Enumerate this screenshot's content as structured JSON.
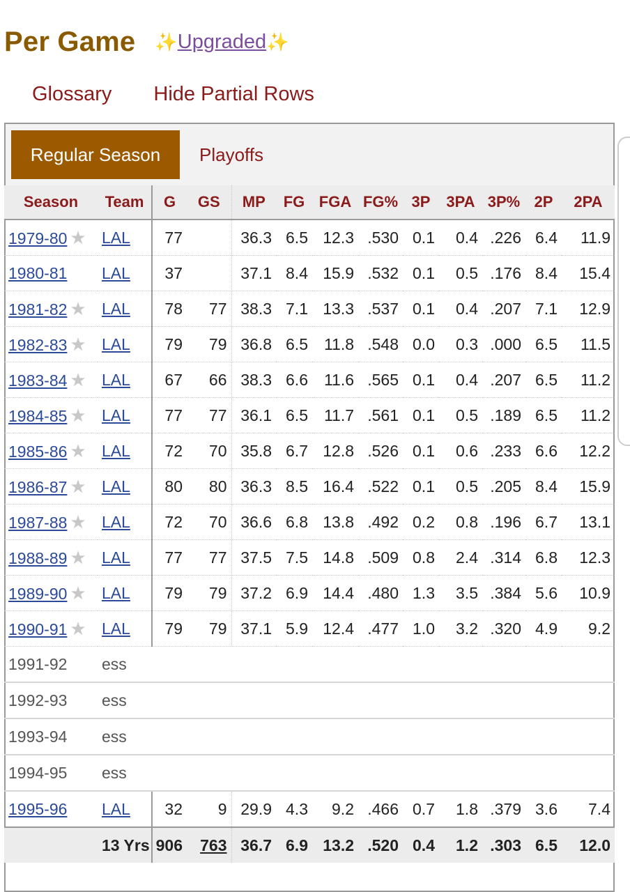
{
  "header": {
    "title": "Per Game",
    "sparkle_left": "✨",
    "upgraded_label": "Upgraded",
    "sparkle_right": "✨"
  },
  "links": {
    "glossary": "Glossary",
    "hide_partial": "Hide Partial Rows"
  },
  "tabs": {
    "regular_season": "Regular Season",
    "playoffs": "Playoffs"
  },
  "table": {
    "columns": [
      "Season",
      "Team",
      "G",
      "GS",
      "MP",
      "FG",
      "FGA",
      "FG%",
      "3P",
      "3PA",
      "3P%",
      "2P",
      "2PA"
    ],
    "rows": [
      {
        "season": "1979-80",
        "star": true,
        "team": "LAL",
        "g": "77",
        "gs": "",
        "mp": "36.3",
        "fg": "6.5",
        "fga": "12.3",
        "fg_pct": ".530",
        "tp": "0.1",
        "tpa": "0.4",
        "tp_pct": ".226",
        "twop": "6.4",
        "twopa": "11.9"
      },
      {
        "season": "1980-81",
        "star": false,
        "team": "LAL",
        "g": "37",
        "gs": "",
        "mp": "37.1",
        "fg": "8.4",
        "fga": "15.9",
        "fg_pct": ".532",
        "tp": "0.1",
        "tpa": "0.5",
        "tp_pct": ".176",
        "twop": "8.4",
        "twopa": "15.4"
      },
      {
        "season": "1981-82",
        "star": true,
        "team": "LAL",
        "g": "78",
        "gs": "77",
        "mp": "38.3",
        "fg": "7.1",
        "fga": "13.3",
        "fg_pct": ".537",
        "tp": "0.1",
        "tpa": "0.4",
        "tp_pct": ".207",
        "twop": "7.1",
        "twopa": "12.9"
      },
      {
        "season": "1982-83",
        "star": true,
        "team": "LAL",
        "g": "79",
        "gs": "79",
        "mp": "36.8",
        "fg": "6.5",
        "fga": "11.8",
        "fg_pct": ".548",
        "tp": "0.0",
        "tpa": "0.3",
        "tp_pct": ".000",
        "twop": "6.5",
        "twopa": "11.5"
      },
      {
        "season": "1983-84",
        "star": true,
        "team": "LAL",
        "g": "67",
        "gs": "66",
        "mp": "38.3",
        "fg": "6.6",
        "fga": "11.6",
        "fg_pct": ".565",
        "tp": "0.1",
        "tpa": "0.4",
        "tp_pct": ".207",
        "twop": "6.5",
        "twopa": "11.2"
      },
      {
        "season": "1984-85",
        "star": true,
        "team": "LAL",
        "g": "77",
        "gs": "77",
        "mp": "36.1",
        "fg": "6.5",
        "fga": "11.7",
        "fg_pct": ".561",
        "tp": "0.1",
        "tpa": "0.5",
        "tp_pct": ".189",
        "twop": "6.5",
        "twopa": "11.2"
      },
      {
        "season": "1985-86",
        "star": true,
        "team": "LAL",
        "g": "72",
        "gs": "70",
        "mp": "35.8",
        "fg": "6.7",
        "fga": "12.8",
        "fg_pct": ".526",
        "tp": "0.1",
        "tpa": "0.6",
        "tp_pct": ".233",
        "twop": "6.6",
        "twopa": "12.2"
      },
      {
        "season": "1986-87",
        "star": true,
        "team": "LAL",
        "g": "80",
        "gs": "80",
        "mp": "36.3",
        "fg": "8.5",
        "fga": "16.4",
        "fg_pct": ".522",
        "tp": "0.1",
        "tpa": "0.5",
        "tp_pct": ".205",
        "twop": "8.4",
        "twopa": "15.9"
      },
      {
        "season": "1987-88",
        "star": true,
        "team": "LAL",
        "g": "72",
        "gs": "70",
        "mp": "36.6",
        "fg": "6.8",
        "fga": "13.8",
        "fg_pct": ".492",
        "tp": "0.2",
        "tpa": "0.8",
        "tp_pct": ".196",
        "twop": "6.7",
        "twopa": "13.1"
      },
      {
        "season": "1988-89",
        "star": true,
        "team": "LAL",
        "g": "77",
        "gs": "77",
        "mp": "37.5",
        "fg": "7.5",
        "fga": "14.8",
        "fg_pct": ".509",
        "tp": "0.8",
        "tpa": "2.4",
        "tp_pct": ".314",
        "twop": "6.8",
        "twopa": "12.3"
      },
      {
        "season": "1989-90",
        "star": true,
        "team": "LAL",
        "g": "79",
        "gs": "79",
        "mp": "37.2",
        "fg": "6.9",
        "fga": "14.4",
        "fg_pct": ".480",
        "tp": "1.3",
        "tpa": "3.5",
        "tp_pct": ".384",
        "twop": "5.6",
        "twopa": "10.9"
      },
      {
        "season": "1990-91",
        "star": true,
        "team": "LAL",
        "g": "79",
        "gs": "79",
        "mp": "37.1",
        "fg": "5.9",
        "fga": "12.4",
        "fg_pct": ".477",
        "tp": "1.0",
        "tpa": "3.2",
        "tp_pct": ".320",
        "twop": "4.9",
        "twopa": "9.2"
      }
    ],
    "partial_rows": [
      {
        "season": "1991-92",
        "note": "ess"
      },
      {
        "season": "1992-93",
        "note": "ess"
      },
      {
        "season": "1993-94",
        "note": "ess"
      },
      {
        "season": "1994-95",
        "note": "ess"
      }
    ],
    "last_row": {
      "season": "1995-96",
      "team": "LAL",
      "g": "32",
      "gs": "9",
      "mp": "29.9",
      "fg": "4.3",
      "fga": "9.2",
      "fg_pct": ".466",
      "tp": "0.7",
      "tpa": "1.8",
      "tp_pct": ".379",
      "twop": "3.6",
      "twopa": "7.4"
    },
    "career": {
      "label": "13 Yrs",
      "g": "906",
      "gs": "763",
      "mp": "36.7",
      "fg": "6.9",
      "fga": "13.2",
      "fg_pct": ".520",
      "tp": "0.4",
      "tpa": "1.2",
      "tp_pct": ".303",
      "twop": "6.5",
      "twopa": "12.0"
    }
  }
}
